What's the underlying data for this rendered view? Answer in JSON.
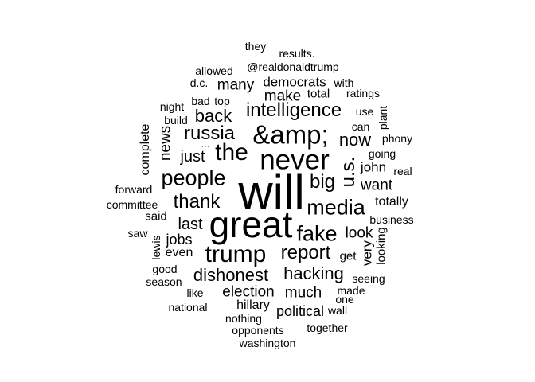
{
  "words": [
    "will",
    "great",
    "never",
    "&amp;",
    "the",
    "trump",
    "people",
    "media",
    "fake",
    "intelligence",
    "russia",
    "thank",
    "report",
    "hacking",
    "dishonest",
    "u.s.",
    "big",
    "now",
    "back",
    "election",
    "last",
    "just",
    "much",
    "want",
    "look",
    "news",
    "make",
    "many",
    "democrats",
    "john",
    "jobs",
    "hillary",
    "political",
    "very",
    "complete",
    "totally",
    "even",
    "said",
    "get",
    "looking",
    "@realdonaldtrump",
    "total",
    "ratings",
    "with",
    "d.c.",
    "allowed",
    "bad",
    "top",
    "night",
    "build",
    "use",
    "plant",
    "can",
    "phony",
    "going",
    "real",
    "forward",
    "committee",
    "business",
    "saw",
    "lewis",
    "good",
    "season",
    "seeing",
    "made",
    "one",
    "like",
    "national",
    "nothing",
    "wall",
    "opponents",
    "together",
    "washington",
    "they",
    "results.",
    "..."
  ]
}
